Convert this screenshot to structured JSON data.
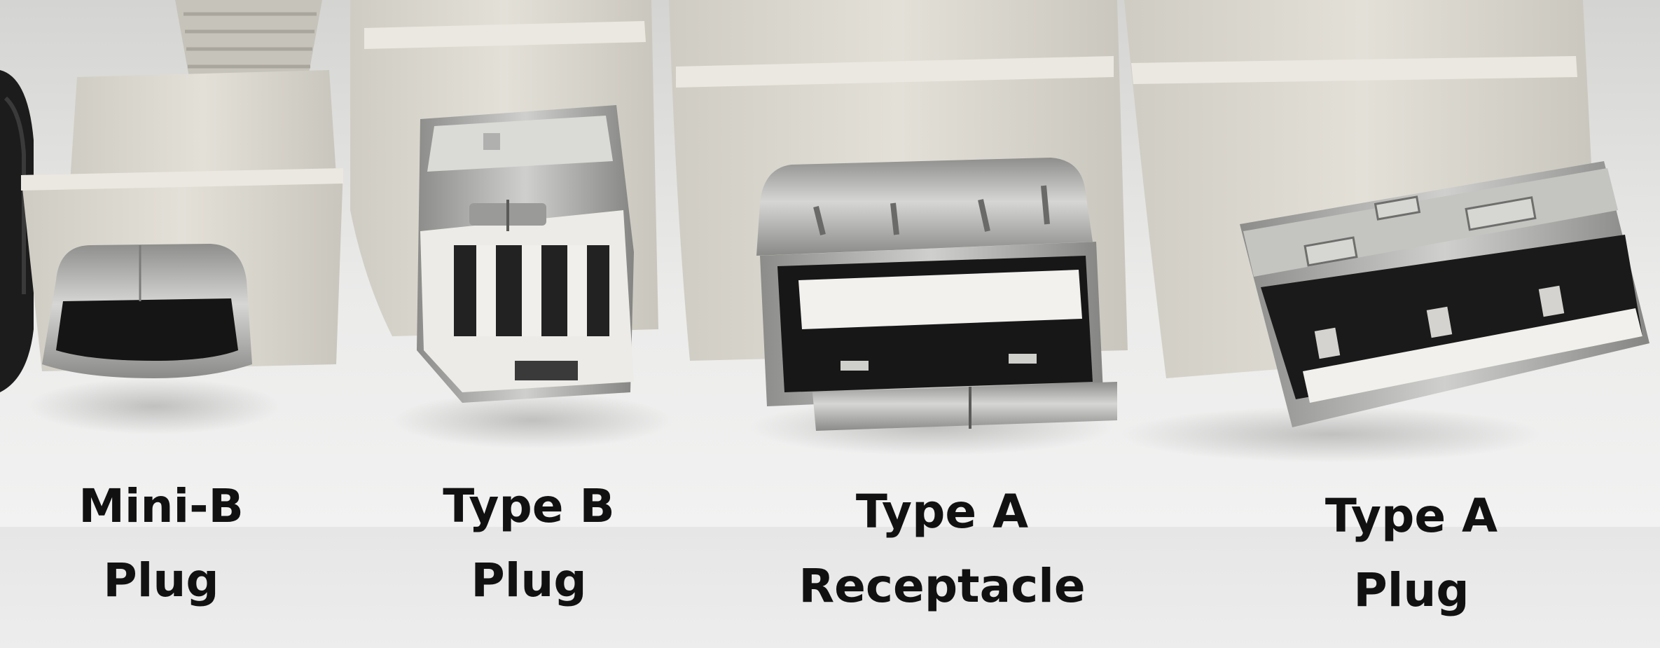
{
  "connectors": [
    {
      "id": "mini-b-plug",
      "line1": "Mini-B",
      "line2": "Plug"
    },
    {
      "id": "type-b-plug",
      "line1": "Type B",
      "line2": "Plug"
    },
    {
      "id": "type-a-receptacle",
      "line1": "Type A",
      "line2": "Receptacle"
    },
    {
      "id": "type-a-plug",
      "line1": "Type A",
      "line2": "Plug"
    }
  ],
  "colors": {
    "background": "#ebebeb",
    "plastic": "#d9d6cd",
    "metal": "#b9b9b9",
    "cavity": "#1a1a1a",
    "label_text": "#111111"
  }
}
